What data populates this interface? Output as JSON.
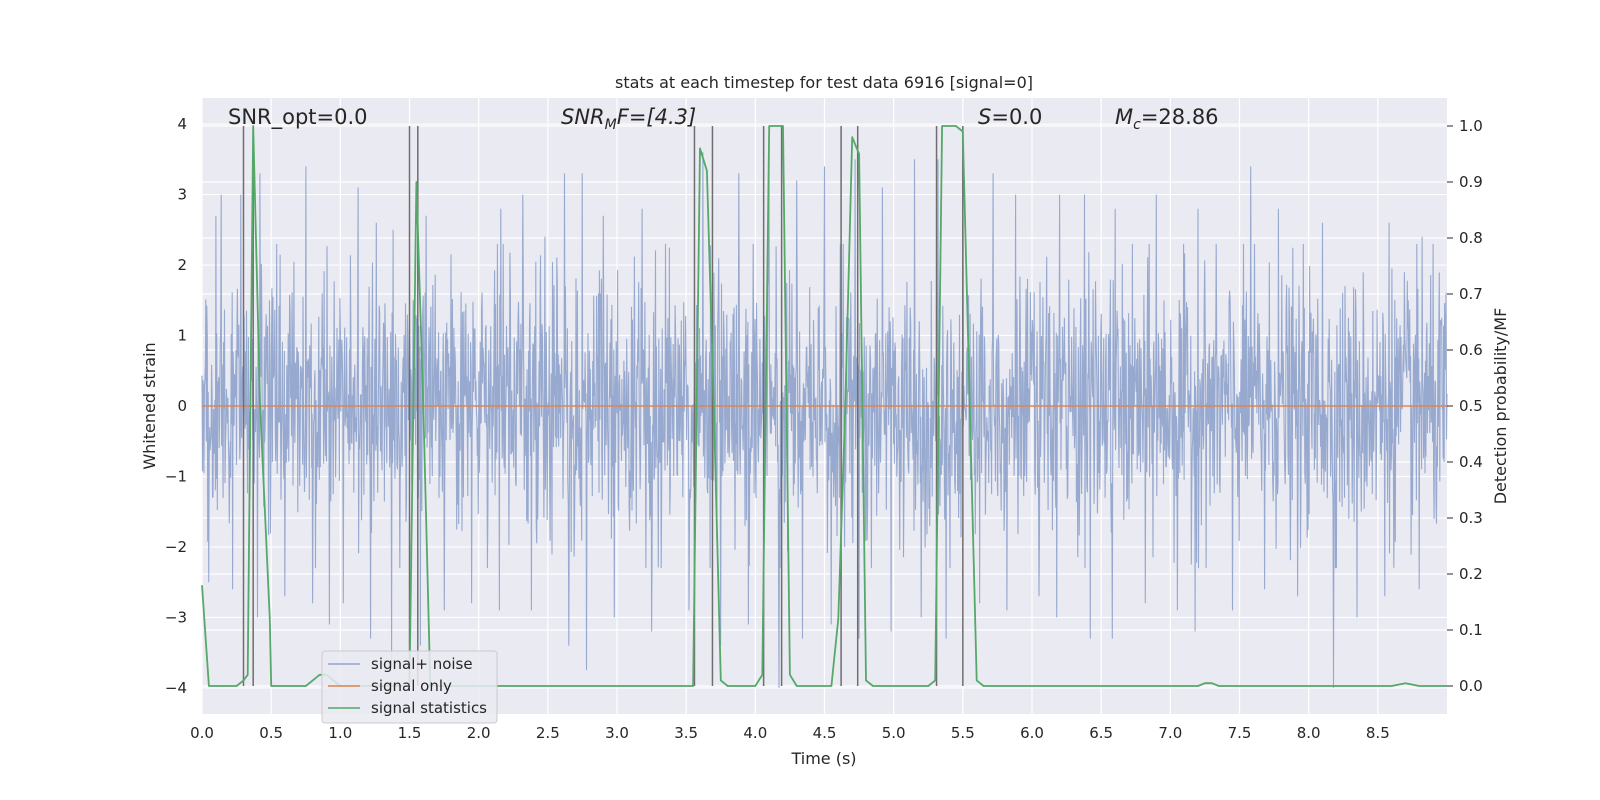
{
  "chart_data": {
    "type": "line",
    "title": "stats at each timestep for test data 6916 [signal=0]",
    "xlabel": "Time (s)",
    "ylabel_left": "Whitened strain",
    "ylabel_right": "Detection probability/MF",
    "xlim": [
      0.0,
      9.0
    ],
    "ylim_left": [
      -4.37,
      4.37
    ],
    "ylim_right": [
      -0.05,
      1.05
    ],
    "x_ticks": [
      0.0,
      0.5,
      1.0,
      1.5,
      2.0,
      2.5,
      3.0,
      3.5,
      4.0,
      4.5,
      5.0,
      5.5,
      6.0,
      6.5,
      7.0,
      7.5,
      8.0,
      8.5
    ],
    "x_tick_labels": [
      "0.0",
      "0.5",
      "1.0",
      "1.5",
      "2.0",
      "2.5",
      "3.0",
      "3.5",
      "4.0",
      "4.5",
      "5.0",
      "5.5",
      "6.0",
      "6.5",
      "7.0",
      "7.5",
      "8.0",
      "8.5"
    ],
    "y_left_ticks": [
      -4,
      -3,
      -2,
      -1,
      0,
      1,
      2,
      3,
      4
    ],
    "y_left_tick_labels": [
      "−4",
      "−3",
      "−2",
      "−1",
      "0",
      "1",
      "2",
      "3",
      "4"
    ],
    "y_right_ticks": [
      0.0,
      0.1,
      0.2,
      0.3,
      0.4,
      0.5,
      0.6,
      0.7,
      0.8,
      0.9,
      1.0
    ],
    "y_right_tick_labels": [
      "0.0",
      "0.1",
      "0.2",
      "0.3",
      "0.4",
      "0.5",
      "0.6",
      "0.7",
      "0.8",
      "0.9",
      "1.0"
    ],
    "grid": true,
    "legend_position": "lower-left",
    "annotations": {
      "snr_opt": "SNR_opt=0.0",
      "snr_mf_italic": "SNR",
      "snr_mf_sub": "M",
      "snr_mf_rest": "F=[4.3]",
      "s_italic": "S",
      "s_rest": "=0.0",
      "mc_italic": "M",
      "mc_sub": "c",
      "mc_rest": "=28.86"
    },
    "series": [
      {
        "name": "signal+ noise",
        "color": "#92a5cc",
        "description_axis": "left",
        "noise_envelope": {
          "x_start": 0.0,
          "x_end": 9.0,
          "spikes_up": [
            [
              0.05,
              2.4
            ],
            [
              0.1,
              2.7
            ],
            [
              0.14,
              3.0
            ],
            [
              0.28,
              3.0
            ],
            [
              0.42,
              3.3
            ],
            [
              0.6,
              2.9
            ],
            [
              0.75,
              3.4
            ],
            [
              0.92,
              4.0
            ],
            [
              1.13,
              3.1
            ],
            [
              1.26,
              2.6
            ],
            [
              1.38,
              2.5
            ],
            [
              1.62,
              2.7
            ],
            [
              1.75,
              2.3
            ],
            [
              1.95,
              2.1
            ],
            [
              2.16,
              2.8
            ],
            [
              2.32,
              3.0
            ],
            [
              2.48,
              2.4
            ],
            [
              2.62,
              3.3
            ],
            [
              2.75,
              3.3
            ],
            [
              2.9,
              2.7
            ],
            [
              3.18,
              2.8
            ],
            [
              3.35,
              2.3
            ],
            [
              3.52,
              3.3
            ],
            [
              3.62,
              3.6
            ],
            [
              3.88,
              3.3
            ],
            [
              4.1,
              3.6
            ],
            [
              4.3,
              3.2
            ],
            [
              4.5,
              3.4
            ],
            [
              4.72,
              3.5
            ],
            [
              4.92,
              3.1
            ],
            [
              5.15,
              3.5
            ],
            [
              5.32,
              3.5
            ],
            [
              5.5,
              3.5
            ],
            [
              5.72,
              3.3
            ],
            [
              5.88,
              3.0
            ],
            [
              6.05,
              3.0
            ],
            [
              6.2,
              3.0
            ],
            [
              6.38,
              3.0
            ],
            [
              6.6,
              2.8
            ],
            [
              6.9,
              3.0
            ],
            [
              7.2,
              2.8
            ],
            [
              7.45,
              2.7
            ],
            [
              7.58,
              3.4
            ],
            [
              7.78,
              2.8
            ],
            [
              8.1,
              2.6
            ],
            [
              8.35,
              2.4
            ],
            [
              8.58,
              2.6
            ],
            [
              8.82,
              2.4
            ]
          ],
          "spikes_down": [
            [
              0.05,
              -2.5
            ],
            [
              0.22,
              -2.6
            ],
            [
              0.4,
              -3.0
            ],
            [
              0.6,
              -2.7
            ],
            [
              0.8,
              -2.8
            ],
            [
              0.92,
              -3.1
            ],
            [
              1.02,
              -2.8
            ],
            [
              1.22,
              -3.3
            ],
            [
              1.37,
              -3.6
            ],
            [
              1.58,
              -3.4
            ],
            [
              1.75,
              -2.9
            ],
            [
              1.95,
              -2.8
            ],
            [
              2.15,
              -2.9
            ],
            [
              2.38,
              -2.9
            ],
            [
              2.65,
              -3.4
            ],
            [
              2.78,
              -3.75
            ],
            [
              2.98,
              -3.0
            ],
            [
              3.25,
              -3.2
            ],
            [
              3.52,
              -2.9
            ],
            [
              3.75,
              -3.4
            ],
            [
              3.95,
              -3.1
            ],
            [
              4.17,
              -4.0
            ],
            [
              4.34,
              -3.3
            ],
            [
              4.55,
              -3.1
            ],
            [
              4.75,
              -3.3
            ],
            [
              4.98,
              -3.2
            ],
            [
              5.2,
              -3.0
            ],
            [
              5.38,
              -3.3
            ],
            [
              5.62,
              -2.8
            ],
            [
              5.82,
              -2.9
            ],
            [
              6.05,
              -2.7
            ],
            [
              6.18,
              -3.0
            ],
            [
              6.42,
              -3.3
            ],
            [
              6.58,
              -3.3
            ],
            [
              6.82,
              -2.8
            ],
            [
              7.05,
              -2.9
            ],
            [
              7.18,
              -3.2
            ],
            [
              7.45,
              -2.9
            ],
            [
              7.68,
              -2.6
            ],
            [
              7.92,
              -2.7
            ],
            [
              8.18,
              -4.0
            ],
            [
              8.35,
              -3.0
            ],
            [
              8.55,
              -2.7
            ],
            [
              8.8,
              -2.6
            ]
          ]
        }
      },
      {
        "name": "signal only",
        "color": "#dd8452",
        "description_axis": "left",
        "x": [
          0.0,
          9.0
        ],
        "y": [
          0.0,
          0.0
        ]
      },
      {
        "name": "signal statistics",
        "color": "#55a868",
        "description_axis": "right",
        "x": [
          0.0,
          0.05,
          0.1,
          0.15,
          0.2,
          0.25,
          0.3,
          0.33,
          0.37,
          0.42,
          0.49,
          0.5,
          0.55,
          0.6,
          0.65,
          0.7,
          0.75,
          0.8,
          0.85,
          0.9,
          0.95,
          1.0,
          1.1,
          1.2,
          1.3,
          1.4,
          1.45,
          1.5,
          1.55,
          1.6,
          1.65,
          1.7,
          3.55,
          3.6,
          3.65,
          3.7,
          3.75,
          3.8,
          3.85,
          4.0,
          4.05,
          4.1,
          4.15,
          4.2,
          4.25,
          4.3,
          4.35,
          4.55,
          4.6,
          4.65,
          4.7,
          4.75,
          4.8,
          4.85,
          4.9,
          5.25,
          5.3,
          5.35,
          5.4,
          5.45,
          5.5,
          5.55,
          5.6,
          5.65,
          5.7,
          7.2,
          7.25,
          7.3,
          7.35,
          8.6,
          8.7,
          8.8,
          9.0
        ],
        "y": [
          0.18,
          0.0,
          0.0,
          0.0,
          0.0,
          0.0,
          0.01,
          0.02,
          1.0,
          0.5,
          0.12,
          0.0,
          0.0,
          0.0,
          0.0,
          0.0,
          0.0,
          0.01,
          0.02,
          0.02,
          0.01,
          0.0,
          0.0,
          0.0,
          0.0,
          0.0,
          0.0,
          0.0,
          0.9,
          0.5,
          0.0,
          0.0,
          0.0,
          0.96,
          0.92,
          0.5,
          0.01,
          0.0,
          0.0,
          0.0,
          0.02,
          1.0,
          1.0,
          1.0,
          0.02,
          0.0,
          0.0,
          0.0,
          0.12,
          0.5,
          0.98,
          0.95,
          0.01,
          0.0,
          0.0,
          0.0,
          0.01,
          1.0,
          1.0,
          1.0,
          0.99,
          0.5,
          0.01,
          0.0,
          0.0,
          0.0,
          0.005,
          0.005,
          0.0,
          0.0,
          0.005,
          0.0,
          0.0
        ]
      }
    ],
    "vertical_lines": {
      "color": "#6e6e6e",
      "x": [
        0.3,
        0.37,
        1.5,
        1.56,
        3.56,
        3.69,
        4.06,
        4.19,
        4.62,
        4.74,
        5.31,
        5.5
      ]
    }
  }
}
